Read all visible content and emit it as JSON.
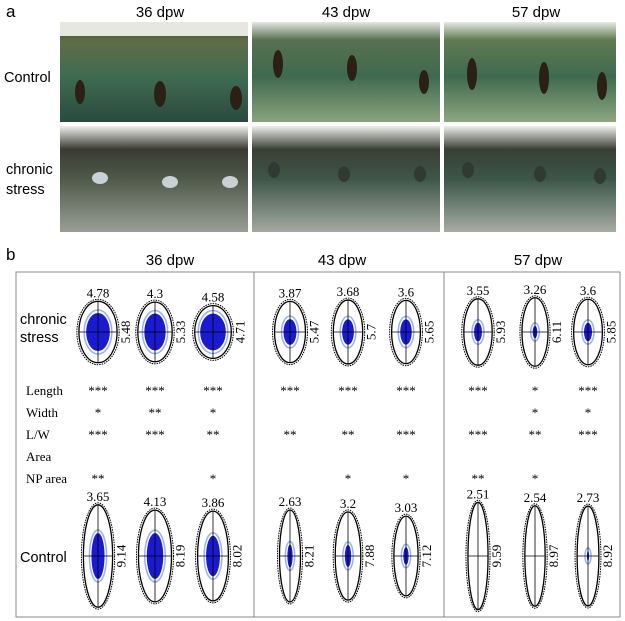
{
  "panel_a": {
    "label": "a",
    "columns": [
      "36 dpw",
      "43 dpw",
      "57 dpw"
    ],
    "rows": [
      "Control",
      "chronic\nstress"
    ]
  },
  "panel_b": {
    "label": "b",
    "columns": [
      "36 dpw",
      "43 dpw",
      "57 dpw"
    ],
    "stress_label": "chronic\nstress",
    "control_label": "Control",
    "stat_rows": [
      "Length",
      "Width",
      "L/W",
      "Area",
      "NP area"
    ],
    "stress_ellipses": [
      {
        "width": "4.78",
        "length": "5.48",
        "fill": 0.62
      },
      {
        "width": "4.3",
        "length": "5.33",
        "fill": 0.62
      },
      {
        "width": "4.58",
        "length": "4.71",
        "fill": 0.7
      },
      {
        "width": "3.87",
        "length": "5.47",
        "fill": 0.42
      },
      {
        "width": "3.68",
        "length": "5.7",
        "fill": 0.4
      },
      {
        "width": "3.6",
        "length": "5.65",
        "fill": 0.4
      },
      {
        "width": "3.55",
        "length": "5.93",
        "fill": 0.28
      },
      {
        "width": "3.26",
        "length": "6.11",
        "fill": 0.18
      },
      {
        "width": "3.6",
        "length": "5.85",
        "fill": 0.28
      }
    ],
    "control_ellipses": [
      {
        "width": "3.65",
        "length": "9.14",
        "fill": 0.45
      },
      {
        "width": "4.13",
        "length": "8.19",
        "fill": 0.5
      },
      {
        "width": "3.86",
        "length": "8.02",
        "fill": 0.45
      },
      {
        "width": "2.63",
        "length": "8.21",
        "fill": 0.25
      },
      {
        "width": "3.2",
        "length": "7.88",
        "fill": 0.25
      },
      {
        "width": "3.03",
        "length": "7.12",
        "fill": 0.22
      },
      {
        "width": "2.51",
        "length": "9.59",
        "fill": 0
      },
      {
        "width": "2.54",
        "length": "8.97",
        "fill": 0
      },
      {
        "width": "2.73",
        "length": "8.92",
        "fill": 0.1
      }
    ],
    "significance": [
      [
        "***",
        "***",
        "***",
        "***",
        "***",
        "***",
        "***",
        "*",
        "***"
      ],
      [
        "*",
        "**",
        "*",
        "",
        "",
        "",
        "",
        "*",
        "*"
      ],
      [
        "***",
        "***",
        "**",
        "**",
        "**",
        "***",
        "***",
        "**",
        "***"
      ],
      [
        "",
        "",
        "",
        "",
        "",
        "",
        "",
        "",
        ""
      ],
      [
        "**",
        "",
        "*",
        "",
        "*",
        "*",
        "**",
        "*",
        ""
      ]
    ],
    "colors": {
      "nucleus": "#1a1ad0",
      "border": "#000000"
    }
  }
}
